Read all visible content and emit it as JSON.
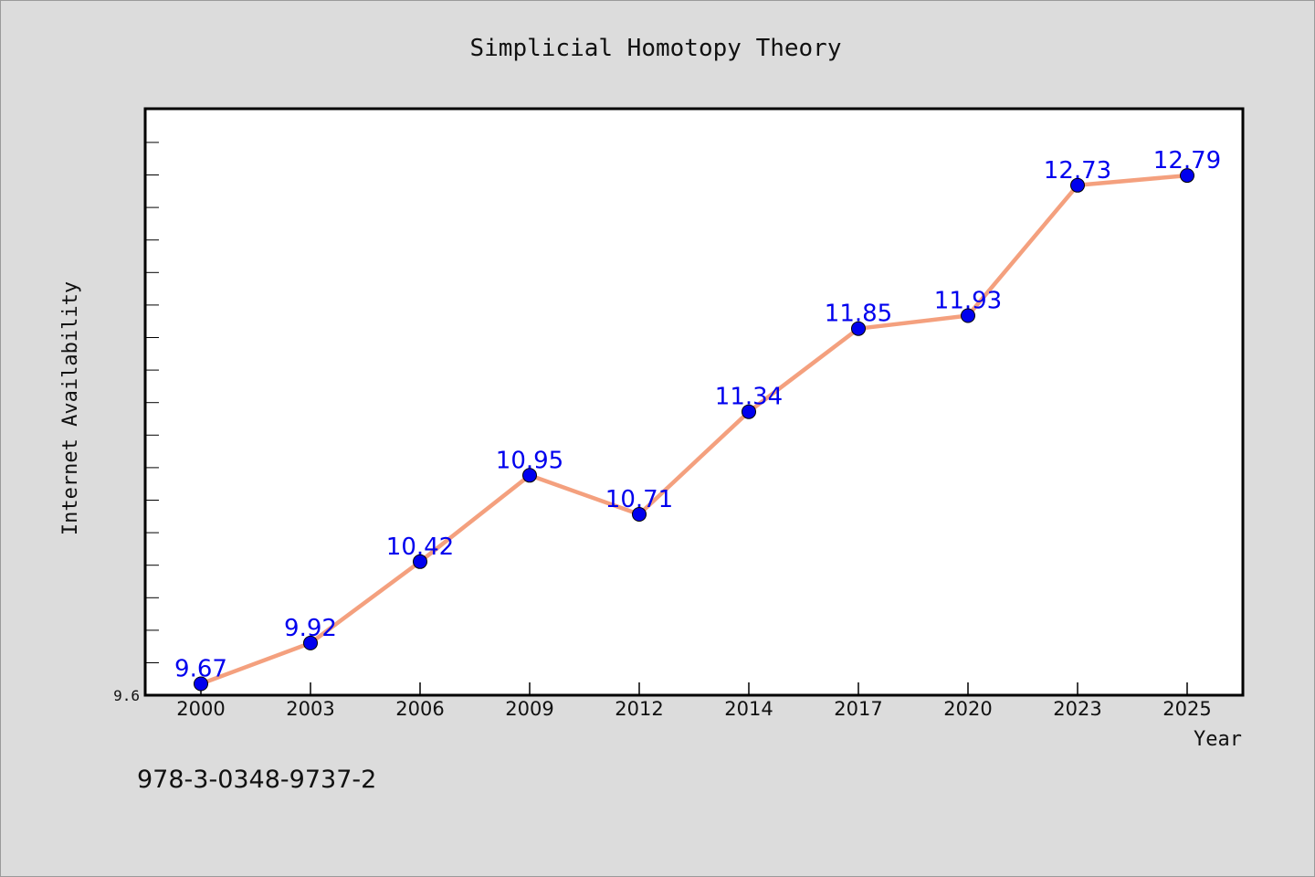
{
  "chart_data": {
    "type": "line",
    "title": "Simplicial Homotopy Theory",
    "xlabel": "Year",
    "ylabel": "Internet Availability",
    "categories": [
      "2000",
      "2003",
      "2006",
      "2009",
      "2012",
      "2014",
      "2017",
      "2020",
      "2023",
      "2025"
    ],
    "series": [
      {
        "values": [
          9.67,
          9.92,
          10.42,
          10.95,
          10.71,
          11.34,
          11.85,
          11.93,
          12.73,
          12.79
        ]
      }
    ],
    "data_labels": [
      "9.67",
      "9.92",
      "10.42",
      "10.95",
      "10.71",
      "11.34",
      "11.85",
      "11.93",
      "12.73",
      "12.79"
    ],
    "ytick_labels": [
      "9.6"
    ],
    "ylim": [
      9.6,
      13.2
    ],
    "grid": false,
    "legend": "none",
    "footer": "978-3-0348-9737-2",
    "colors": {
      "background": "#dcdcdc",
      "plot_background": "#ffffff",
      "line": "#f4a07e",
      "marker": "#0000ee",
      "data_label": "#0000ee"
    }
  }
}
